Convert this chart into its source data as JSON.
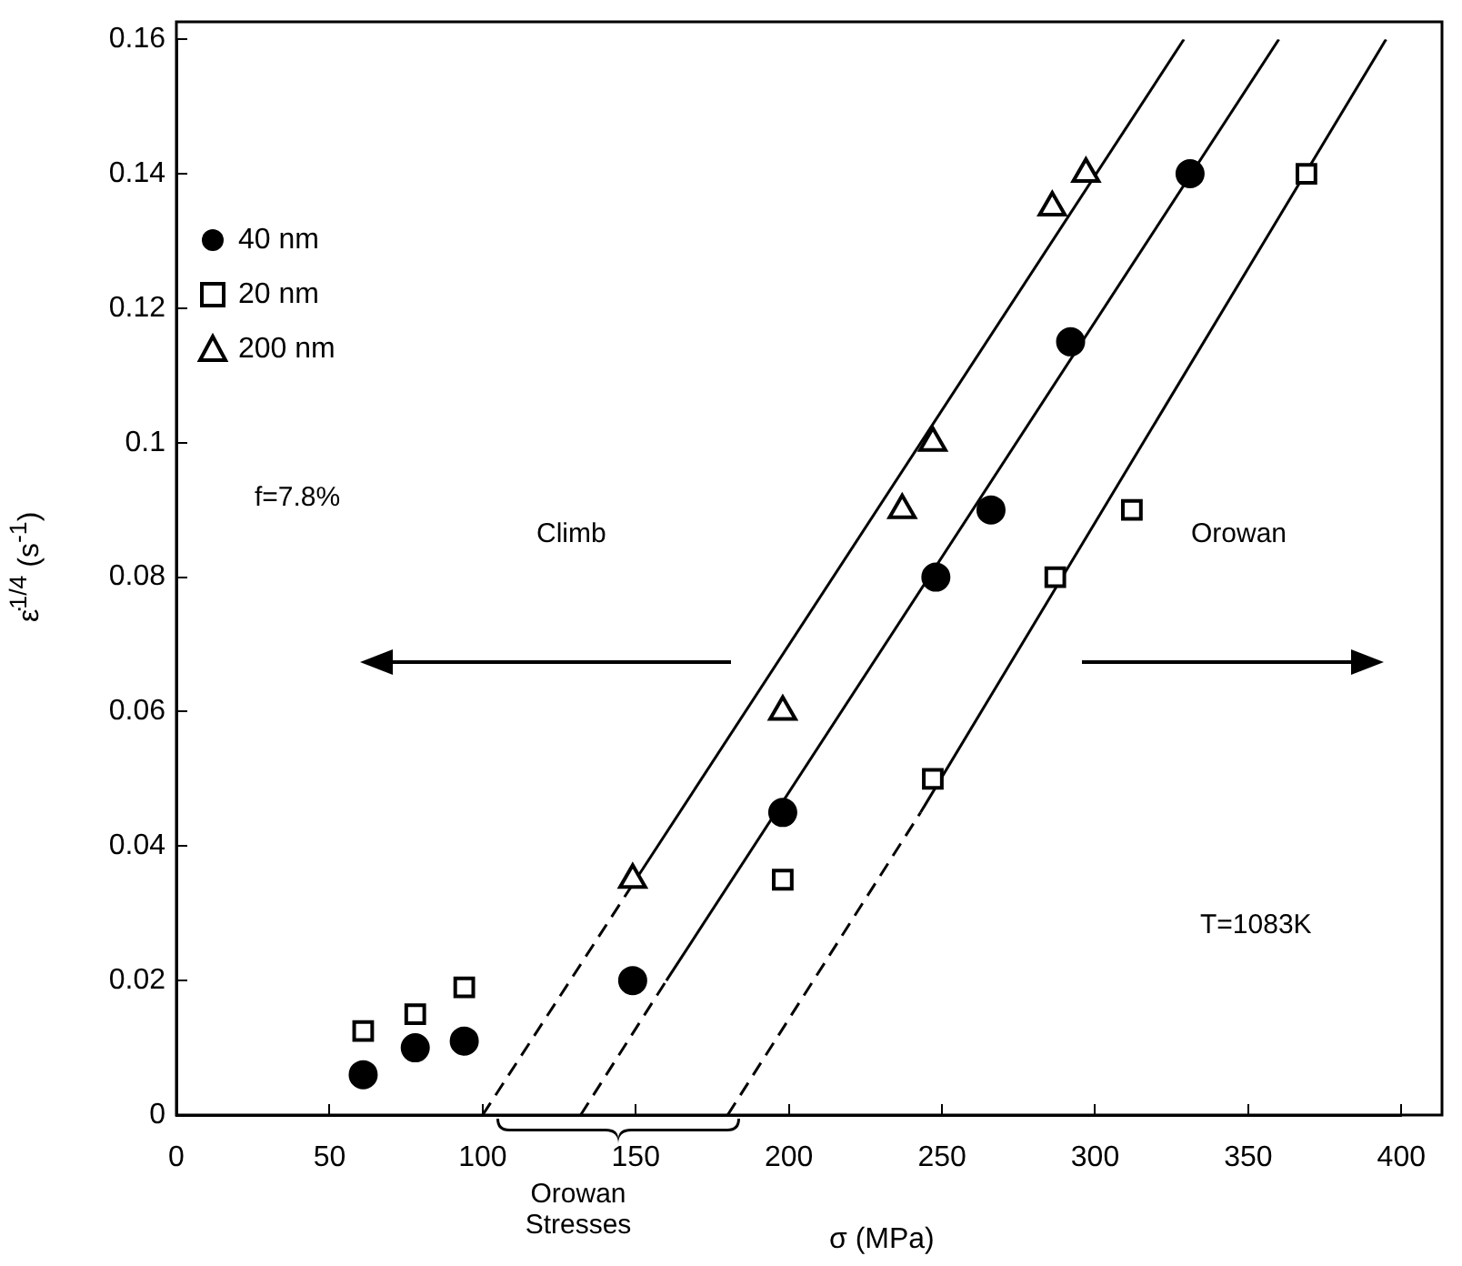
{
  "chart_data": {
    "type": "scatter",
    "xlabel": "σ (MPa)",
    "ylabel": "ε̇$^{1/4}$ (s$^{-1}$)",
    "xlim": [
      0,
      400
    ],
    "xticks": [
      0,
      50,
      100,
      150,
      200,
      250,
      300,
      350,
      400
    ],
    "ylim": [
      0,
      0.16
    ],
    "yticks": [
      0,
      0.02,
      0.04,
      0.06,
      0.08,
      0.1,
      0.12,
      0.14,
      0.16
    ],
    "grid": false,
    "legend": "top left",
    "series": [
      {
        "name": "40 nm",
        "color": "#000000",
        "marker": "circle",
        "x": [
          61,
          78,
          94,
          149,
          198,
          248,
          266,
          292,
          331
        ],
        "values": [
          0.006,
          0.01,
          0.011,
          0.02,
          0.045,
          0.08,
          0.09,
          0.115,
          0.14
        ]
      },
      {
        "name": "20 nm",
        "color": "#000000",
        "marker": "square",
        "x": [
          61,
          78,
          94,
          198,
          247,
          287,
          312,
          369
        ],
        "values": [
          0.0125,
          0.015,
          0.019,
          0.035,
          0.05,
          0.08,
          0.09,
          0.14
        ]
      },
      {
        "name": "200 nm",
        "color": "#000000",
        "marker": "triangle",
        "x": [
          149,
          198,
          237,
          247,
          286,
          297
        ],
        "values": [
          0.035,
          0.06,
          0.09,
          0.1,
          0.135,
          0.14
        ]
      },
      {
        "type": "line",
        "color": "#000000",
        "marker": "none",
        "line_style": "dashed",
        "x": [
          100,
          150
        ],
        "values": [
          0,
          0.035
        ]
      },
      {
        "type": "line",
        "color": "#000000",
        "marker": "none",
        "line_style": "solid",
        "x": [
          150,
          329
        ],
        "values": [
          0.035,
          0.16
        ]
      },
      {
        "type": "line",
        "color": "#000000",
        "marker": "none",
        "line_style": "dashed",
        "x": [
          132,
          160
        ],
        "values": [
          0,
          0.02
        ]
      },
      {
        "type": "line",
        "color": "#000000",
        "marker": "none",
        "line_style": "solid",
        "x": [
          160,
          360
        ],
        "values": [
          0.02,
          0.16
        ]
      },
      {
        "type": "line",
        "color": "#000000",
        "marker": "none",
        "line_style": "dashed",
        "x": [
          180,
          243
        ],
        "values": [
          0,
          0.045
        ]
      },
      {
        "type": "line",
        "color": "#000000",
        "marker": "none",
        "line_style": "solid",
        "x": [
          243,
          395
        ],
        "values": [
          0.045,
          0.16
        ]
      }
    ],
    "annotations": [
      "f=7.8%",
      "Climb",
      "Orowan",
      "T=1083K",
      "Orowan Stresses"
    ]
  }
}
